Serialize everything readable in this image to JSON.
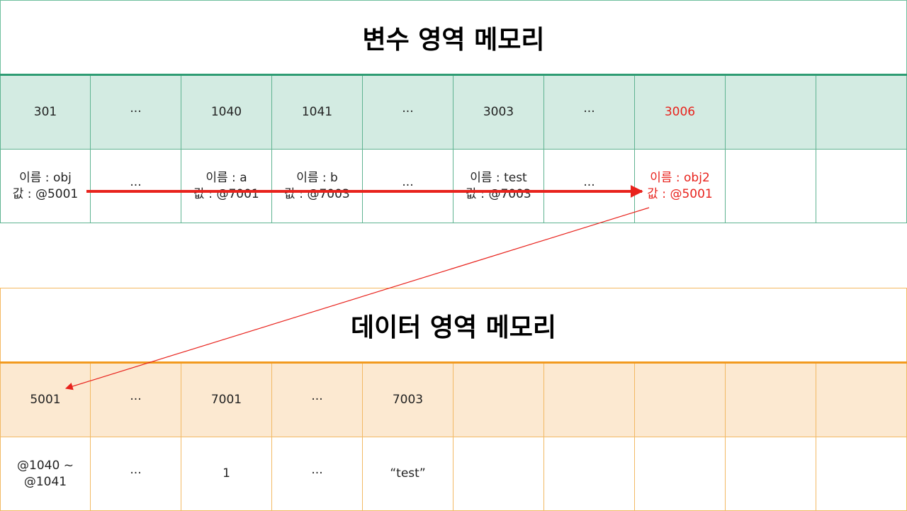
{
  "variable_area": {
    "title": "변수 영역 메모리",
    "addresses": [
      "301",
      "···",
      "1040",
      "1041",
      "···",
      "3003",
      "···",
      "3006",
      "",
      ""
    ],
    "values": [
      "이름 : obj\n값 : @5001",
      "···",
      "이름 : a\n값 : @7001",
      "이름 : b\n값 : @7003",
      "···",
      "이름 : test\n값 : @7003",
      "···",
      "이름 : obj2\n값 : @5001",
      "",
      ""
    ],
    "highlight_index": 7,
    "highlight_color": "#e8231d"
  },
  "data_area": {
    "title": "데이터 영역 메모리",
    "addresses": [
      "5001",
      "···",
      "7001",
      "···",
      "7003",
      "",
      "",
      "",
      "",
      ""
    ],
    "values": [
      "@1040 ~\n@1041",
      "···",
      "1",
      "···",
      "“test”",
      "",
      "",
      "",
      "",
      ""
    ]
  },
  "colors": {
    "variable_accent": "#2e9c73",
    "variable_fill": "#d3ebe2",
    "data_accent": "#f29a1f",
    "data_fill": "#fce9d1",
    "arrow": "#e8231d"
  },
  "arrows": [
    {
      "from": "variable_area.values.0",
      "to": "variable_area.values.7",
      "style": "thick"
    },
    {
      "from": "variable_area.values.7",
      "to": "data_area.addresses.0",
      "style": "thin"
    }
  ]
}
